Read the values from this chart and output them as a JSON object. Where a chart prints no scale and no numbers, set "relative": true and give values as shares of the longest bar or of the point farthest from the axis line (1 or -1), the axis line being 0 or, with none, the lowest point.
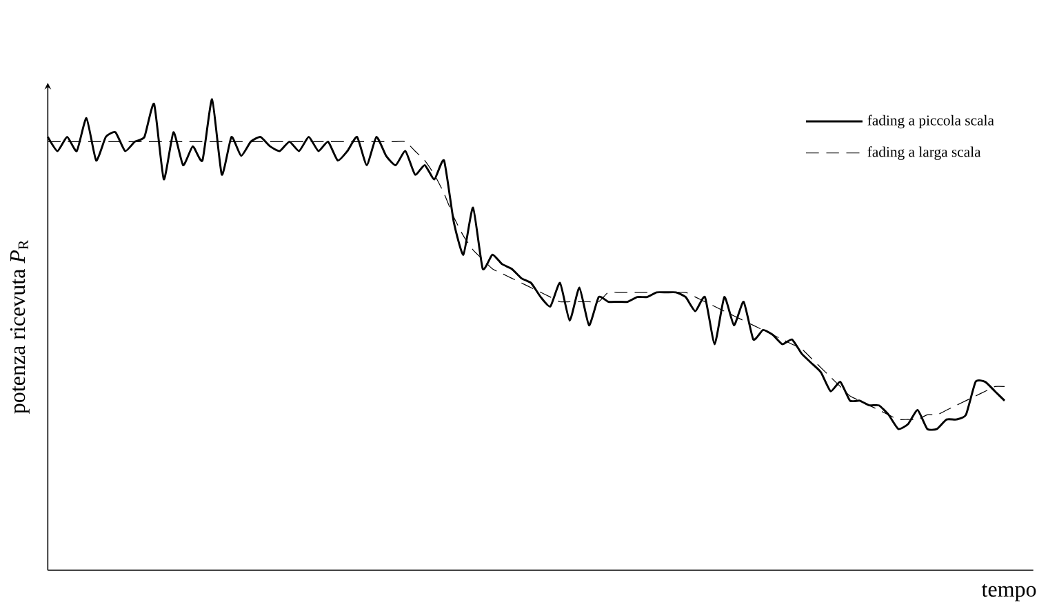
{
  "chart_data": {
    "type": "line",
    "relative": true,
    "xlabel": "tempo",
    "ylabel": "potenza ricevuta *P*$_{R}$",
    "legend": "top right",
    "marker": "none",
    "categories": [
      null,
      null,
      null,
      null,
      null,
      null,
      null,
      null,
      null,
      null,
      null,
      null,
      null,
      null,
      null,
      null,
      null,
      null,
      null,
      null,
      null,
      null,
      null,
      null,
      null,
      null,
      null,
      null,
      null,
      null,
      null,
      null,
      null,
      null,
      null,
      null,
      null,
      null,
      null,
      null,
      null,
      null,
      null,
      null,
      null,
      null,
      null,
      null,
      null,
      null,
      null,
      null,
      null,
      null,
      null,
      null,
      null,
      null,
      null,
      null,
      null,
      null,
      null,
      null,
      null,
      null,
      null,
      null,
      null,
      null,
      null,
      null,
      null,
      null,
      null,
      null,
      null,
      null,
      null,
      null,
      null,
      null,
      null,
      null,
      null,
      null,
      null,
      null,
      null,
      null,
      null,
      null,
      null,
      null,
      null,
      null,
      null,
      null,
      null,
      null
    ],
    "series": [
      {
        "name": "fading a piccola scala",
        "color": "#000000",
        "line_style": "solid",
        "values": [
          0.92,
          0.89,
          0.92,
          0.89,
          0.96,
          0.87,
          0.92,
          0.93,
          0.89,
          0.91,
          0.92,
          0.99,
          0.83,
          0.93,
          0.86,
          0.9,
          0.87,
          1.0,
          0.84,
          0.92,
          0.88,
          0.91,
          0.92,
          0.9,
          0.89,
          0.91,
          0.89,
          0.92,
          0.89,
          0.91,
          0.87,
          0.89,
          0.92,
          0.86,
          0.92,
          0.88,
          0.86,
          0.89,
          0.84,
          0.86,
          0.83,
          0.87,
          0.74,
          0.67,
          0.77,
          0.64,
          0.67,
          0.65,
          0.64,
          0.62,
          0.61,
          0.58,
          0.56,
          0.61,
          0.53,
          0.6,
          0.52,
          0.58,
          0.57,
          0.57,
          0.57,
          0.58,
          0.58,
          0.59,
          0.59,
          0.59,
          0.58,
          0.55,
          0.58,
          0.48,
          0.58,
          0.52,
          0.57,
          0.49,
          0.51,
          0.5,
          0.48,
          0.49,
          0.46,
          0.44,
          0.42,
          0.38,
          0.4,
          0.36,
          0.36,
          0.35,
          0.35,
          0.33,
          0.3,
          0.31,
          0.34,
          0.3,
          0.3,
          0.32,
          0.32,
          0.33,
          0.4,
          0.4,
          0.38,
          0.36
        ]
      },
      {
        "name": "fading a larga scala",
        "color": "#000000",
        "line_style": "dashed",
        "values": [
          0.91,
          0.91,
          0.91,
          0.91,
          0.91,
          0.91,
          0.91,
          0.91,
          0.91,
          0.91,
          0.91,
          0.91,
          0.91,
          0.91,
          0.91,
          0.91,
          0.91,
          0.91,
          0.91,
          0.91,
          0.91,
          0.91,
          0.91,
          0.91,
          0.91,
          0.91,
          0.91,
          0.91,
          0.91,
          0.91,
          0.91,
          0.91,
          0.91,
          0.91,
          0.91,
          0.91,
          0.91,
          0.91,
          0.89,
          0.87,
          0.84,
          0.8,
          0.75,
          0.71,
          0.68,
          0.66,
          0.64,
          0.63,
          0.62,
          0.61,
          0.6,
          0.59,
          0.58,
          0.57,
          0.57,
          0.57,
          0.57,
          0.57,
          0.59,
          0.59,
          0.59,
          0.59,
          0.59,
          0.59,
          0.59,
          0.59,
          0.59,
          0.58,
          0.57,
          0.56,
          0.55,
          0.54,
          0.53,
          0.52,
          0.51,
          0.5,
          0.49,
          0.48,
          0.47,
          0.45,
          0.43,
          0.41,
          0.39,
          0.37,
          0.36,
          0.35,
          0.34,
          0.33,
          0.32,
          0.32,
          0.32,
          0.33,
          0.33,
          0.34,
          0.35,
          0.36,
          0.37,
          0.38,
          0.39,
          0.39
        ]
      }
    ]
  }
}
